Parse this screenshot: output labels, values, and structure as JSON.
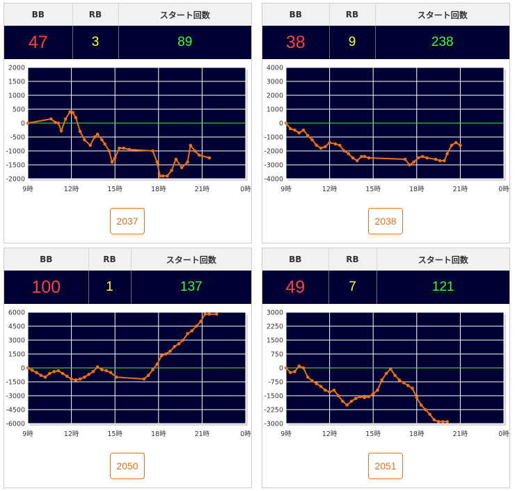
{
  "headers": {
    "bb": "BB",
    "rb": "RB",
    "start": "スタート回数"
  },
  "colors": {
    "bb": "#ff4040",
    "rb": "#ffff33",
    "start": "#33ff33",
    "line": "#f07010",
    "zero": "#33cc33",
    "plot_bg": "#000033",
    "button": "#e8701a"
  },
  "machines": [
    {
      "number": "2037",
      "bb": "47",
      "rb": "3",
      "start": "89",
      "chart_data": {
        "type": "line",
        "x_label_suffix": "時",
        "x_ticks": [
          9,
          12,
          15,
          18,
          21,
          24
        ],
        "x_tick_labels": [
          "9時",
          "12時",
          "15時",
          "18時",
          "21時",
          "0時"
        ],
        "xlim": [
          9,
          24
        ],
        "y_ticks": [
          2000,
          1500,
          1000,
          500,
          0,
          -500,
          -1000,
          -1500,
          -2000
        ],
        "ylim": [
          -2000,
          2000
        ],
        "grid": true,
        "x": [
          9.0,
          10.6,
          10.9,
          11.1,
          11.3,
          11.6,
          11.9,
          12.1,
          12.3,
          12.6,
          12.9,
          13.3,
          13.6,
          13.8,
          14.1,
          14.3,
          14.6,
          14.8,
          15.0,
          15.3,
          15.6,
          16.0,
          17.6,
          17.9,
          18.1,
          18.3,
          18.6,
          18.9,
          19.2,
          19.6,
          20.0,
          20.2,
          20.5,
          20.8,
          21.5
        ],
        "values": [
          0,
          150,
          20,
          0,
          -280,
          150,
          400,
          380,
          200,
          -300,
          -600,
          -800,
          -500,
          -400,
          -600,
          -750,
          -1000,
          -1400,
          -1250,
          -900,
          -900,
          -950,
          -1000,
          -1400,
          -1900,
          -1900,
          -1900,
          -1700,
          -1300,
          -1600,
          -1400,
          -800,
          -1000,
          -1150,
          -1250
        ]
      }
    },
    {
      "number": "2038",
      "bb": "38",
      "rb": "9",
      "start": "238",
      "chart_data": {
        "type": "line",
        "x_ticks": [
          9,
          12,
          15,
          18,
          21,
          24
        ],
        "x_tick_labels": [
          "9時",
          "12時",
          "15時",
          "18時",
          "21時",
          "0時"
        ],
        "xlim": [
          9,
          24
        ],
        "y_ticks": [
          4000,
          3000,
          2000,
          1000,
          0,
          -1000,
          -2000,
          -3000,
          -4000
        ],
        "ylim": [
          -4000,
          4000
        ],
        "grid": true,
        "x": [
          9.0,
          9.3,
          9.6,
          9.9,
          10.2,
          10.5,
          10.8,
          11.1,
          11.4,
          11.7,
          12.0,
          12.4,
          12.7,
          13.0,
          13.3,
          13.6,
          13.9,
          14.2,
          14.4,
          14.7,
          17.2,
          17.5,
          17.8,
          18.1,
          18.4,
          18.7,
          19.3,
          19.6,
          19.9,
          20.1,
          20.4,
          20.7,
          21.0
        ],
        "values": [
          0,
          -400,
          -500,
          -700,
          -500,
          -900,
          -1200,
          -1600,
          -1800,
          -1700,
          -1400,
          -1500,
          -1600,
          -2000,
          -2200,
          -2500,
          -2700,
          -2400,
          -2400,
          -2500,
          -2600,
          -3000,
          -2800,
          -2500,
          -2400,
          -2500,
          -2600,
          -2700,
          -2700,
          -2200,
          -1600,
          -1400,
          -1600
        ]
      }
    },
    {
      "number": "2050",
      "bb": "100",
      "rb": "1",
      "start": "137",
      "chart_data": {
        "type": "line",
        "x_ticks": [
          9,
          12,
          15,
          18,
          21,
          24
        ],
        "x_tick_labels": [
          "9時",
          "12時",
          "15時",
          "18時",
          "21時",
          "0時"
        ],
        "xlim": [
          9,
          24
        ],
        "y_ticks": [
          6000,
          4500,
          3000,
          1500,
          0,
          -1500,
          -3000,
          -4500,
          -6000
        ],
        "ylim": [
          -6000,
          6000
        ],
        "grid": true,
        "x": [
          9.0,
          9.3,
          9.6,
          9.9,
          10.2,
          10.5,
          10.8,
          11.1,
          11.4,
          11.7,
          12.0,
          12.3,
          12.6,
          12.9,
          13.2,
          13.5,
          13.8,
          14.1,
          14.4,
          14.7,
          15.1,
          17.0,
          17.3,
          17.6,
          17.9,
          18.2,
          18.5,
          18.8,
          19.1,
          19.4,
          19.7,
          20.0,
          20.3,
          20.6,
          20.9,
          21.2,
          21.5,
          22.0
        ],
        "values": [
          0,
          -250,
          -500,
          -800,
          -1000,
          -600,
          -400,
          -300,
          -600,
          -900,
          -1200,
          -1300,
          -1200,
          -1000,
          -700,
          -400,
          100,
          -200,
          -300,
          -500,
          -1000,
          -1200,
          -800,
          -200,
          400,
          1300,
          1500,
          1800,
          2300,
          2600,
          3000,
          3700,
          4000,
          4500,
          5000,
          5800,
          5800,
          5800
        ]
      }
    },
    {
      "number": "2051",
      "bb": "49",
      "rb": "7",
      "start": "121",
      "chart_data": {
        "type": "line",
        "x_ticks": [
          9,
          12,
          15,
          18,
          21,
          24
        ],
        "x_tick_labels": [
          "9時",
          "12時",
          "15時",
          "18時",
          "21時",
          "0時"
        ],
        "xlim": [
          9,
          24
        ],
        "y_ticks": [
          3000,
          2250,
          1500,
          750,
          0,
          -750,
          -1500,
          -2250,
          -3000
        ],
        "ylim": [
          -3000,
          3000
        ],
        "grid": true,
        "x": [
          9.0,
          9.3,
          9.6,
          9.9,
          10.2,
          10.5,
          10.8,
          11.1,
          11.4,
          11.7,
          12.0,
          12.3,
          12.6,
          12.9,
          13.2,
          13.5,
          13.8,
          14.1,
          14.4,
          14.7,
          15.0,
          15.3,
          15.6,
          15.9,
          16.2,
          16.5,
          16.8,
          17.1,
          17.4,
          17.7,
          18.0,
          18.3,
          18.6,
          18.9,
          19.2,
          19.5,
          19.8,
          20.1
        ],
        "values": [
          0,
          -250,
          -200,
          100,
          0,
          -500,
          -700,
          -850,
          -1000,
          -1200,
          -1300,
          -1200,
          -1500,
          -1800,
          -2000,
          -1800,
          -1650,
          -1550,
          -1600,
          -1550,
          -1400,
          -1200,
          -650,
          -300,
          -50,
          -400,
          -650,
          -800,
          -950,
          -1100,
          -1600,
          -2000,
          -2250,
          -2500,
          -2800,
          -2900,
          -2900,
          -2900
        ]
      }
    }
  ]
}
